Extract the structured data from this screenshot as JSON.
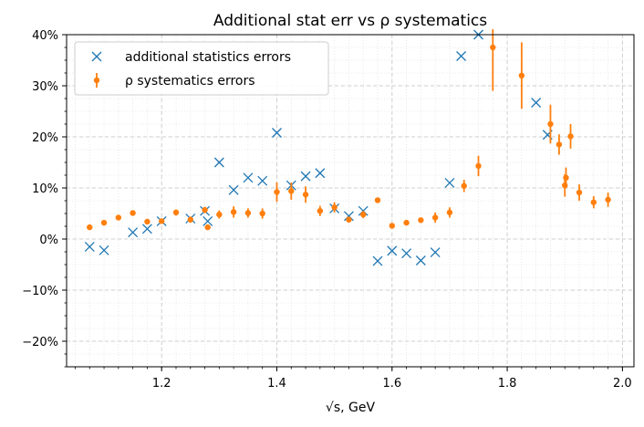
{
  "chart_data": {
    "type": "scatter",
    "title": "Additional stat err vs ρ systematics",
    "xlabel": "√s, GeV",
    "ylabel": "",
    "xlim": [
      1.035,
      2.02
    ],
    "ylim": [
      -25,
      40
    ],
    "x_ticks": [
      {
        "value": 1.2,
        "label": "1.2"
      },
      {
        "value": 1.4,
        "label": "1.4"
      },
      {
        "value": 1.6,
        "label": "1.6"
      },
      {
        "value": 1.8,
        "label": "1.8"
      },
      {
        "value": 2.0,
        "label": "2.0"
      }
    ],
    "y_ticks": [
      {
        "value": -20,
        "label": "−20%"
      },
      {
        "value": -10,
        "label": "−10%"
      },
      {
        "value": 0,
        "label": "0%"
      },
      {
        "value": 10,
        "label": "10%"
      },
      {
        "value": 20,
        "label": "20%"
      },
      {
        "value": 30,
        "label": "30%"
      },
      {
        "value": 40,
        "label": "40%"
      }
    ],
    "grid": "major dashed, minor dotted",
    "legend_position": "top-left",
    "series": [
      {
        "name": "additional statistics errors",
        "marker": "x",
        "color": "#1f77b4",
        "points": [
          {
            "x": 1.075,
            "y": -1.5
          },
          {
            "x": 1.1,
            "y": -2.2
          },
          {
            "x": 1.15,
            "y": 1.3
          },
          {
            "x": 1.175,
            "y": 2.0
          },
          {
            "x": 1.2,
            "y": 3.5
          },
          {
            "x": 1.25,
            "y": 4.0
          },
          {
            "x": 1.275,
            "y": 5.5
          },
          {
            "x": 1.28,
            "y": 3.5
          },
          {
            "x": 1.3,
            "y": 15.0
          },
          {
            "x": 1.325,
            "y": 9.6
          },
          {
            "x": 1.35,
            "y": 12.0
          },
          {
            "x": 1.375,
            "y": 11.4
          },
          {
            "x": 1.4,
            "y": 20.8
          },
          {
            "x": 1.425,
            "y": 10.5
          },
          {
            "x": 1.45,
            "y": 12.3
          },
          {
            "x": 1.475,
            "y": 12.9
          },
          {
            "x": 1.5,
            "y": 6.0
          },
          {
            "x": 1.525,
            "y": 4.5
          },
          {
            "x": 1.55,
            "y": 5.5
          },
          {
            "x": 1.575,
            "y": -4.3
          },
          {
            "x": 1.6,
            "y": -2.3
          },
          {
            "x": 1.625,
            "y": -2.8
          },
          {
            "x": 1.65,
            "y": -4.2
          },
          {
            "x": 1.675,
            "y": -2.6
          },
          {
            "x": 1.7,
            "y": 11.0
          },
          {
            "x": 1.72,
            "y": 35.8
          },
          {
            "x": 1.75,
            "y": 40.0
          },
          {
            "x": 1.85,
            "y": 26.7
          },
          {
            "x": 1.87,
            "y": 20.4
          }
        ]
      },
      {
        "name": "ρ systematics errors",
        "marker": "point-errorbar",
        "color": "#ff7f0e",
        "points": [
          {
            "x": 1.075,
            "y": 2.3,
            "err": 0.3
          },
          {
            "x": 1.1,
            "y": 3.2,
            "err": 0.3
          },
          {
            "x": 1.125,
            "y": 4.2,
            "err": 0.4
          },
          {
            "x": 1.15,
            "y": 5.1,
            "err": 0.4
          },
          {
            "x": 1.175,
            "y": 3.4,
            "err": 0.5
          },
          {
            "x": 1.2,
            "y": 3.5,
            "err": 0.4
          },
          {
            "x": 1.225,
            "y": 5.2,
            "err": 0.6
          },
          {
            "x": 1.25,
            "y": 3.8,
            "err": 0.6
          },
          {
            "x": 1.275,
            "y": 5.7,
            "err": 0.6
          },
          {
            "x": 1.28,
            "y": 2.3,
            "err": 0.4
          },
          {
            "x": 1.3,
            "y": 4.8,
            "err": 0.8
          },
          {
            "x": 1.325,
            "y": 5.3,
            "err": 1.1
          },
          {
            "x": 1.35,
            "y": 5.1,
            "err": 0.9
          },
          {
            "x": 1.375,
            "y": 5.0,
            "err": 1.0
          },
          {
            "x": 1.4,
            "y": 9.2,
            "err": 1.9
          },
          {
            "x": 1.425,
            "y": 9.4,
            "err": 1.7
          },
          {
            "x": 1.45,
            "y": 8.7,
            "err": 1.6
          },
          {
            "x": 1.475,
            "y": 5.5,
            "err": 1.0
          },
          {
            "x": 1.5,
            "y": 6.2,
            "err": 1.0
          },
          {
            "x": 1.525,
            "y": 3.8,
            "err": 0.6
          },
          {
            "x": 1.55,
            "y": 4.8,
            "err": 0.7
          },
          {
            "x": 1.575,
            "y": 7.6,
            "err": 0.5
          },
          {
            "x": 1.6,
            "y": 2.6,
            "err": 0.5
          },
          {
            "x": 1.625,
            "y": 3.2,
            "err": 0.4
          },
          {
            "x": 1.65,
            "y": 3.7,
            "err": 0.5
          },
          {
            "x": 1.675,
            "y": 4.2,
            "err": 1.0
          },
          {
            "x": 1.7,
            "y": 5.2,
            "err": 1.0
          },
          {
            "x": 1.725,
            "y": 10.4,
            "err": 1.2
          },
          {
            "x": 1.75,
            "y": 14.3,
            "err": 2.0
          },
          {
            "x": 1.775,
            "y": 37.5,
            "err": 8.5
          },
          {
            "x": 1.825,
            "y": 32.0,
            "err": 6.5
          },
          {
            "x": 1.875,
            "y": 22.5,
            "err": 3.8
          },
          {
            "x": 1.89,
            "y": 18.5,
            "err": 2.0
          },
          {
            "x": 1.9,
            "y": 10.5,
            "err": 2.2
          },
          {
            "x": 1.902,
            "y": 12.0,
            "err": 2.0
          },
          {
            "x": 1.91,
            "y": 20.1,
            "err": 2.4
          },
          {
            "x": 1.925,
            "y": 9.1,
            "err": 1.6
          },
          {
            "x": 1.95,
            "y": 7.2,
            "err": 1.2
          },
          {
            "x": 1.975,
            "y": 7.7,
            "err": 1.4
          }
        ]
      }
    ]
  }
}
